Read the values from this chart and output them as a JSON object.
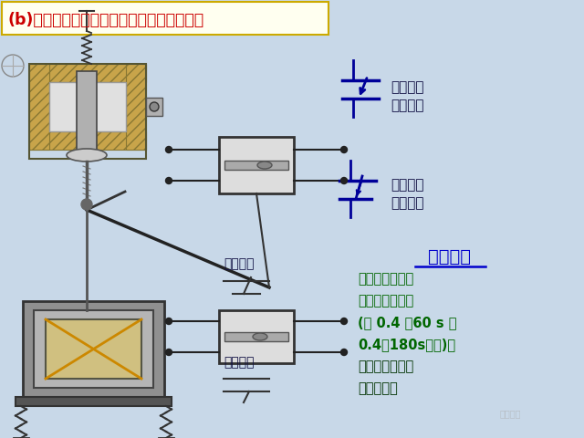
{
  "bg_color": "#c8d8e8",
  "title": "(b)断电延时的空气式时间继电器结构示意图",
  "title_color": "#cc0000",
  "title_bg": "#fffff0",
  "title_border": "#ccaa00",
  "label1": "常闭触点\n延时闭合",
  "label2": "常开触点\n延时断开",
  "label3": "常开触点",
  "label4": "常闭触点",
  "work_title": "工作原理",
  "work_text_line1": "空气式时间继电",
  "work_text_line2": "器的延时范围大",
  "work_text_line3": "(有 0.4 ～60 s 和",
  "work_text_line4": "0.4～180s两种)。",
  "work_text_line5": "结构简单，但准",
  "work_text_line6": "确度较低。",
  "label_color": "#111144",
  "work_title_color": "#0000cc",
  "work_text_bold_color": "#006600",
  "work_text_normal_color": "#003300",
  "coil_gold": "#c8a44a",
  "spring_color": "#333333",
  "contact_blue": "#000099",
  "iron_gray": "#909090",
  "dark": "#333333",
  "watermark": "电工之家"
}
